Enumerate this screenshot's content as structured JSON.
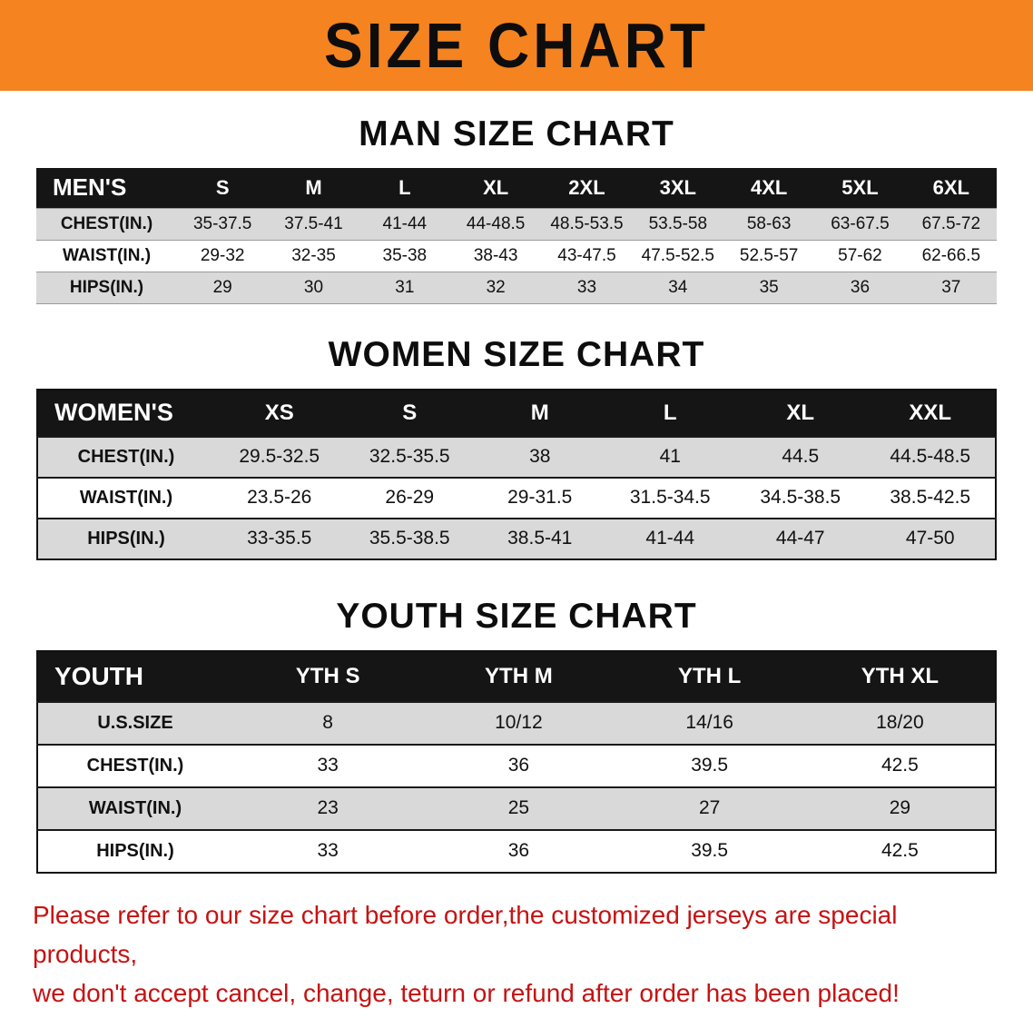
{
  "colors": {
    "accent_orange": "#f5831f",
    "header_black": "#151515",
    "row_gray": "#d9d9d9",
    "notice_red": "#c61212",
    "text_black": "#111111"
  },
  "banner": {
    "title": "SIZE CHART"
  },
  "tables": [
    {
      "title": "MAN SIZE CHART",
      "header": [
        "MEN'S",
        "S",
        "M",
        "L",
        "XL",
        "2XL",
        "3XL",
        "4XL",
        "5XL",
        "6XL"
      ],
      "rows": [
        [
          "CHEST(IN.)",
          "35-37.5",
          "37.5-41",
          "41-44",
          "44-48.5",
          "48.5-53.5",
          "53.5-58",
          "58-63",
          "63-67.5",
          "67.5-72"
        ],
        [
          "WAIST(IN.)",
          "29-32",
          "32-35",
          "35-38",
          "38-43",
          "43-47.5",
          "47.5-52.5",
          "52.5-57",
          "57-62",
          "62-66.5"
        ],
        [
          "HIPS(IN.)",
          "29",
          "30",
          "31",
          "32",
          "33",
          "34",
          "35",
          "36",
          "37"
        ]
      ]
    },
    {
      "title": "WOMEN SIZE CHART",
      "header": [
        "WOMEN'S",
        "XS",
        "S",
        "M",
        "L",
        "XL",
        "XXL"
      ],
      "rows": [
        [
          "CHEST(IN.)",
          "29.5-32.5",
          "32.5-35.5",
          "38",
          "41",
          "44.5",
          "44.5-48.5"
        ],
        [
          "WAIST(IN.)",
          "23.5-26",
          "26-29",
          "29-31.5",
          "31.5-34.5",
          "34.5-38.5",
          "38.5-42.5"
        ],
        [
          "HIPS(IN.)",
          "33-35.5",
          "35.5-38.5",
          "38.5-41",
          "41-44",
          "44-47",
          "47-50"
        ]
      ]
    },
    {
      "title": "YOUTH SIZE CHART",
      "header": [
        "YOUTH",
        "YTH S",
        "YTH M",
        "YTH L",
        "YTH XL"
      ],
      "rows": [
        [
          "U.S.SIZE",
          "8",
          "10/12",
          "14/16",
          "18/20"
        ],
        [
          "CHEST(IN.)",
          "33",
          "36",
          "39.5",
          "42.5"
        ],
        [
          "WAIST(IN.)",
          "23",
          "25",
          "27",
          "29"
        ],
        [
          "HIPS(IN.)",
          "33",
          "36",
          "39.5",
          "42.5"
        ]
      ]
    }
  ],
  "footer": {
    "line1": "Please refer to our size chart before order,the customized jerseys are special products,",
    "line2": "we don't accept cancel, change, teturn or refund after order has been placed!"
  }
}
